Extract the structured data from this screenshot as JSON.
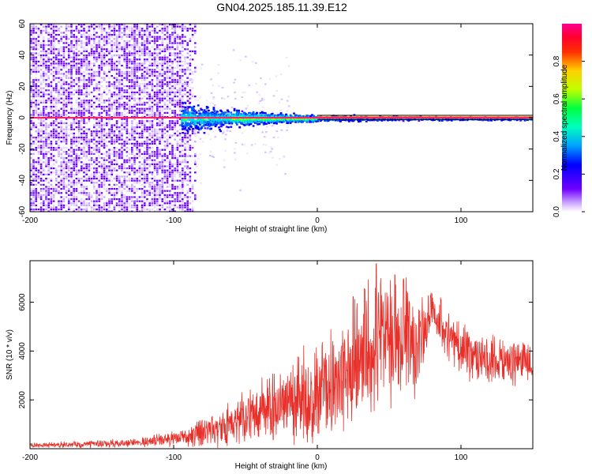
{
  "title": "GN04.2025.185.11.39.E12",
  "chart_data": [
    {
      "type": "heatmap",
      "xlabel": "Height of straight line (km)",
      "ylabel": "Frequency (Hz)",
      "xlim": [
        -200,
        150
      ],
      "ylim": [
        -60,
        60
      ],
      "x_ticks": [
        -200,
        -100,
        0,
        100
      ],
      "y_ticks": [
        -60,
        -40,
        -20,
        0,
        20,
        40,
        60
      ],
      "colorbar": {
        "label": "Normalized spectral amplitude",
        "range": [
          0,
          1
        ],
        "ticks": [
          0.0,
          0.2,
          0.4,
          0.6,
          0.8
        ],
        "colormap": "rainbow (purple-blue-cyan-green-yellow-red-magenta)"
      },
      "features": {
        "carrier_line_frequency_hz": 0,
        "broadband_noise_region_km": [
          -200,
          -95
        ],
        "concentration_onset_km": -95,
        "narrowband_from_km": 0
      },
      "color_scheme": [
        "#6a00ff",
        "#0000ff",
        "#00c8ff",
        "#00ff66",
        "#ccff00",
        "#ff6600",
        "#ff0000",
        "#ff00aa"
      ]
    },
    {
      "type": "line",
      "xlabel": "Height of straight line (km)",
      "ylabel": "SNR (10 * v/v)",
      "xlim": [
        -200,
        150
      ],
      "ylim": [
        0,
        7700
      ],
      "x_ticks": [
        -200,
        -100,
        0,
        100
      ],
      "y_ticks": [
        2000,
        4000,
        6000
      ],
      "color": "#e8302a",
      "envelope": {
        "x_km": [
          -200,
          -175,
          -150,
          -125,
          -100,
          -90,
          -80,
          -70,
          -60,
          -50,
          -40,
          -30,
          -20,
          -10,
          0,
          10,
          20,
          30,
          40,
          50,
          60,
          70,
          80,
          90,
          100,
          110,
          120,
          130,
          140,
          150
        ],
        "base": [
          150,
          170,
          200,
          250,
          400,
          500,
          650,
          850,
          1050,
          1250,
          1450,
          1700,
          1900,
          2100,
          2400,
          2800,
          3300,
          3700,
          4200,
          4400,
          4400,
          3800,
          5600,
          4600,
          4300,
          3800,
          3700,
          3600,
          3600,
          3600
        ],
        "spread": [
          120,
          150,
          180,
          220,
          400,
          500,
          700,
          900,
          1100,
          1300,
          1500,
          1800,
          2000,
          2300,
          2500,
          2700,
          2900,
          3000,
          3200,
          3200,
          3000,
          2800,
          800,
          1200,
          1400,
          1400,
          1300,
          1200,
          1100,
          1000
        ]
      },
      "peaks_km": [
        [
          41,
          7650
        ],
        [
          54,
          7300
        ],
        [
          60,
          7000
        ],
        [
          33,
          6700
        ],
        [
          25,
          6400
        ],
        [
          79,
          6400
        ],
        [
          86,
          6200
        ]
      ]
    }
  ]
}
